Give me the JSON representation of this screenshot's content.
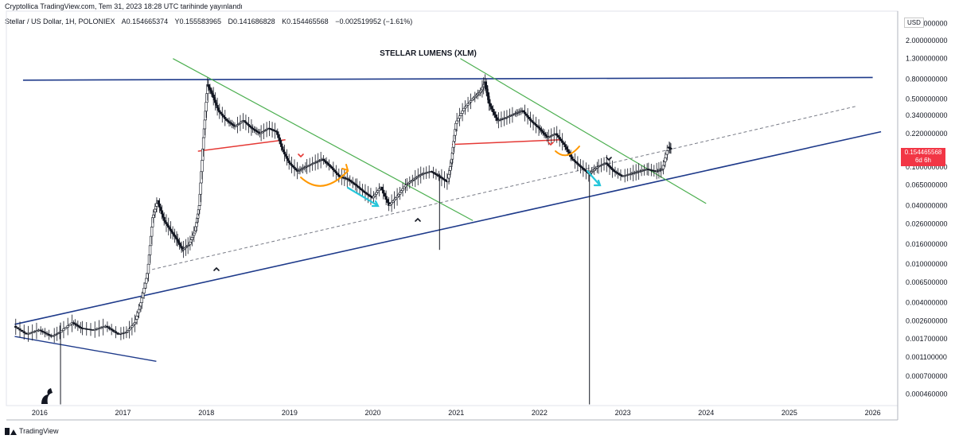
{
  "header": {
    "publish_line": "Cryptollica TradingView.com, Tem 31, 2023 18:28 UTC tarihinde yayınlandı",
    "symbol_line": "Stellar / US Dollar, 1H, POLONIEX",
    "open": "A0.154665374",
    "high": "Y0.155583965",
    "low": "D0.141686828",
    "close": "K0.154465568",
    "change": "−0.002519952 (−1.61%)"
  },
  "currency_label": "USD",
  "price_tag": {
    "value": "0.154465568",
    "countdown": "6d 6h",
    "color": "#f23645"
  },
  "footer": {
    "brand": "TradingView"
  },
  "chart_data": {
    "type": "line",
    "title": "STELLAR LUMENS (XLM)",
    "y_scale": "log",
    "y_ticks": [
      "3.000000000",
      "2.000000000",
      "1.300000000",
      "0.800000000",
      "0.500000000",
      "0.340000000",
      "0.220000000",
      "0.100000000",
      "0.065000000",
      "0.040000000",
      "0.026000000",
      "0.016000000",
      "0.010000000",
      "0.006500000",
      "0.004000000",
      "0.002600000",
      "0.001700000",
      "0.001100000",
      "0.000700000",
      "0.000460000"
    ],
    "x_ticks": [
      "2016",
      "2017",
      "2018",
      "2019",
      "2020",
      "2021",
      "2022",
      "2023",
      "2024",
      "2025",
      "2026"
    ],
    "xlim": [
      2015.6,
      2026.3
    ],
    "ylim": [
      0.00035,
      4.0
    ],
    "colors": {
      "up": "#ffffff",
      "down": "#131722",
      "upper_trend": "#1e3a8a",
      "lower_trend": "#1e3a8a",
      "wedge": "#4caf50",
      "support": "#e53935",
      "arrow_teal": "#26c6da",
      "arrow_orange": "#ff9800",
      "dashed": "#787b86"
    },
    "series": [
      {
        "values": [
          [
            2015.7,
            0.0023
          ],
          [
            2015.85,
            0.0019
          ],
          [
            2016.0,
            0.0021
          ],
          [
            2016.15,
            0.0018
          ],
          [
            2016.25,
            0.002
          ],
          [
            2016.4,
            0.0025
          ],
          [
            2016.5,
            0.0022
          ],
          [
            2016.65,
            0.0021
          ],
          [
            2016.8,
            0.0023
          ],
          [
            2016.95,
            0.0019
          ],
          [
            2017.05,
            0.002
          ],
          [
            2017.15,
            0.0025
          ],
          [
            2017.22,
            0.004
          ],
          [
            2017.3,
            0.008
          ],
          [
            2017.36,
            0.03
          ],
          [
            2017.42,
            0.045
          ],
          [
            2017.5,
            0.028
          ],
          [
            2017.58,
            0.022
          ],
          [
            2017.65,
            0.018
          ],
          [
            2017.72,
            0.014
          ],
          [
            2017.8,
            0.016
          ],
          [
            2017.87,
            0.022
          ],
          [
            2017.92,
            0.04
          ],
          [
            2017.97,
            0.2
          ],
          [
            2018.02,
            0.7
          ],
          [
            2018.08,
            0.55
          ],
          [
            2018.15,
            0.38
          ],
          [
            2018.25,
            0.3
          ],
          [
            2018.35,
            0.26
          ],
          [
            2018.45,
            0.3
          ],
          [
            2018.55,
            0.25
          ],
          [
            2018.65,
            0.22
          ],
          [
            2018.75,
            0.25
          ],
          [
            2018.85,
            0.23
          ],
          [
            2018.92,
            0.15
          ],
          [
            2019.0,
            0.11
          ],
          [
            2019.1,
            0.09
          ],
          [
            2019.2,
            0.1
          ],
          [
            2019.3,
            0.11
          ],
          [
            2019.4,
            0.12
          ],
          [
            2019.5,
            0.1
          ],
          [
            2019.6,
            0.08
          ],
          [
            2019.7,
            0.075
          ],
          [
            2019.8,
            0.065
          ],
          [
            2019.9,
            0.055
          ],
          [
            2020.0,
            0.048
          ],
          [
            2020.1,
            0.062
          ],
          [
            2020.2,
            0.04
          ],
          [
            2020.3,
            0.05
          ],
          [
            2020.4,
            0.065
          ],
          [
            2020.5,
            0.075
          ],
          [
            2020.6,
            0.085
          ],
          [
            2020.7,
            0.09
          ],
          [
            2020.8,
            0.08
          ],
          [
            2020.9,
            0.07
          ],
          [
            2020.95,
            0.12
          ],
          [
            2021.0,
            0.28
          ],
          [
            2021.1,
            0.4
          ],
          [
            2021.2,
            0.5
          ],
          [
            2021.3,
            0.6
          ],
          [
            2021.35,
            0.75
          ],
          [
            2021.4,
            0.45
          ],
          [
            2021.5,
            0.3
          ],
          [
            2021.6,
            0.32
          ],
          [
            2021.7,
            0.35
          ],
          [
            2021.8,
            0.38
          ],
          [
            2021.9,
            0.3
          ],
          [
            2022.0,
            0.25
          ],
          [
            2022.1,
            0.2
          ],
          [
            2022.2,
            0.22
          ],
          [
            2022.3,
            0.17
          ],
          [
            2022.4,
            0.12
          ],
          [
            2022.5,
            0.1
          ],
          [
            2022.6,
            0.085
          ],
          [
            2022.7,
            0.1
          ],
          [
            2022.8,
            0.11
          ],
          [
            2022.9,
            0.09
          ],
          [
            2023.0,
            0.08
          ],
          [
            2023.1,
            0.085
          ],
          [
            2023.2,
            0.09
          ],
          [
            2023.3,
            0.095
          ],
          [
            2023.4,
            0.09
          ],
          [
            2023.48,
            0.095
          ],
          [
            2023.55,
            0.16
          ],
          [
            2023.58,
            0.154
          ]
        ]
      }
    ]
  }
}
